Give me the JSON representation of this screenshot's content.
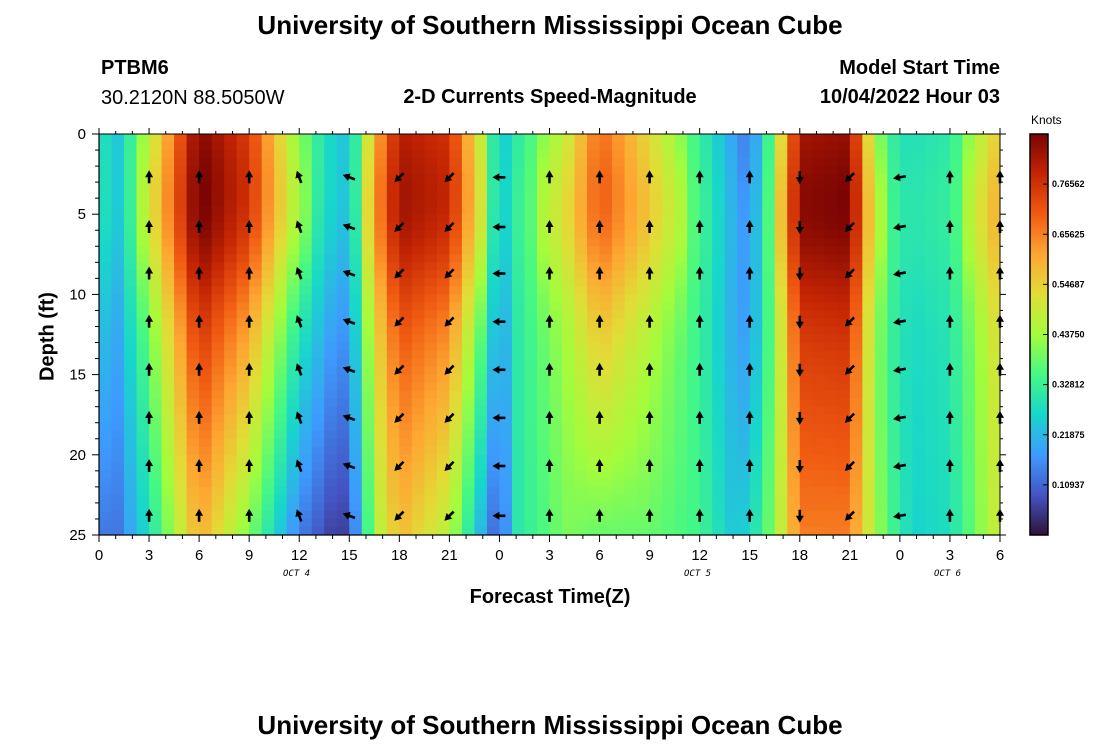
{
  "header": {
    "title": "University of Southern Mississippi Ocean Cube",
    "station": "PTBM6",
    "coords": "30.2120N  88.5050W",
    "subtitle": "2-D Currents Speed-Magnitude",
    "model_start_label": "Model Start Time",
    "model_start_value": "10/04/2022 Hour 03"
  },
  "footer": {
    "title": "University of Southern Mississippi Ocean Cube"
  },
  "colors": {
    "colormap": [
      "#30123b",
      "#4454c4",
      "#3e9bfe",
      "#18d6cb",
      "#46f884",
      "#a4fc3c",
      "#e1dd37",
      "#fea632",
      "#f05b12",
      "#c42503",
      "#7a0403"
    ],
    "arrow": "#000000",
    "axis": "#000000"
  },
  "chart_data": {
    "type": "heatmap",
    "title": "2-D Currents Speed-Magnitude",
    "xlabel": "Forecast Time(Z)",
    "ylabel": "Depth (ft)",
    "x_tick_labels": [
      "0",
      "3",
      "6",
      "9",
      "12",
      "15",
      "18",
      "21",
      "0",
      "3",
      "6",
      "9",
      "12",
      "15",
      "18",
      "21",
      "0",
      "3",
      "6"
    ],
    "x_range_hours": [
      0,
      54
    ],
    "date_labels": [
      {
        "text": "OCT 4",
        "hour": 12
      },
      {
        "text": "OCT 5",
        "hour": 36
      },
      {
        "text": "OCT 6",
        "hour": 51
      }
    ],
    "y_ticks": [
      0,
      5,
      10,
      15,
      20,
      25
    ],
    "y_range_ft": [
      0,
      25
    ],
    "y_inverted": true,
    "colorbar": {
      "title": "Knots",
      "range": [
        0,
        0.875
      ],
      "tick_values": [
        0.10937,
        0.21875,
        0.32812,
        0.4375,
        0.54687,
        0.65625,
        0.76562
      ],
      "tick_labels": [
        "0.10937",
        "0.21875",
        "0.32812",
        "0.43750",
        "0.54687",
        "0.65625",
        "0.76562"
      ]
    },
    "speed_field": {
      "description": "current speed (knots) vs forecast hour and depth",
      "key_hours": [
        0,
        1,
        3,
        6,
        9,
        12,
        14,
        15,
        16.5,
        18,
        21,
        23,
        24,
        25,
        28,
        30,
        33,
        36,
        38,
        39,
        40.5,
        42,
        45,
        46.5,
        48,
        49,
        51,
        54
      ],
      "surface_speed": [
        0.3,
        0.22,
        0.44,
        0.84,
        0.72,
        0.38,
        0.25,
        0.22,
        0.56,
        0.78,
        0.74,
        0.44,
        0.22,
        0.3,
        0.46,
        0.66,
        0.5,
        0.32,
        0.18,
        0.12,
        0.4,
        0.8,
        0.82,
        0.4,
        0.28,
        0.28,
        0.3,
        0.54
      ],
      "bottom_speed": [
        0.14,
        0.12,
        0.28,
        0.6,
        0.4,
        0.14,
        0.06,
        0.06,
        0.44,
        0.58,
        0.46,
        0.2,
        0.08,
        0.3,
        0.4,
        0.38,
        0.38,
        0.34,
        0.24,
        0.26,
        0.42,
        0.66,
        0.66,
        0.44,
        0.3,
        0.26,
        0.28,
        0.5
      ],
      "depth_shape": "bulge near 5 ft depth, decreasing toward 25 ft"
    },
    "vectors": {
      "columns_hours": [
        3,
        6,
        9,
        12,
        15,
        18,
        21,
        24,
        27,
        30,
        33,
        36,
        39,
        42,
        45,
        48,
        51,
        54
      ],
      "row_depths_ft": [
        2.7,
        5.8,
        8.7,
        11.7,
        14.7,
        17.7,
        20.7,
        23.8
      ],
      "directions_deg": [
        0,
        0,
        0,
        -20,
        -70,
        -135,
        -135,
        -90,
        0,
        0,
        0,
        0,
        0,
        180,
        -135,
        -100,
        0,
        0
      ],
      "direction_convention": "degrees clockwise from north (up)"
    }
  }
}
